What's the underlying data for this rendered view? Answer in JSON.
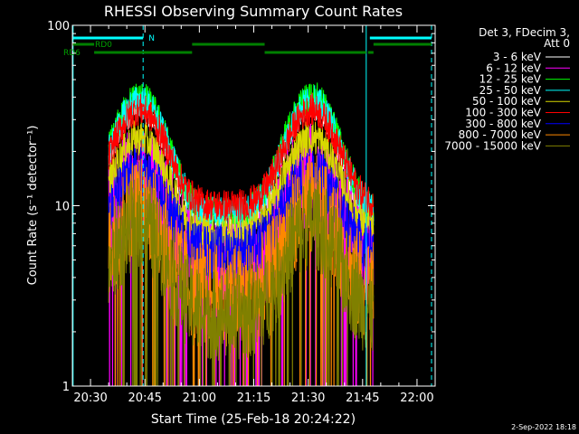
{
  "chart_data": {
    "type": "line",
    "title": "RHESSI Observing Summary Count Rates",
    "xlabel": "Start Time (25-Feb-18 20:24:22)",
    "ylabel": "Count Rate (s⁻¹ detector⁻¹)",
    "yscale": "log",
    "ylim": [
      1,
      100
    ],
    "xlim_min": [
      25,
      125
    ],
    "x_ticks": [
      {
        "min": 30,
        "label": "20:30"
      },
      {
        "min": 45,
        "label": "20:45"
      },
      {
        "min": 60,
        "label": "21:00"
      },
      {
        "min": 75,
        "label": "21:15"
      },
      {
        "min": 90,
        "label": "21:30"
      },
      {
        "min": 105,
        "label": "21:45"
      },
      {
        "min": 120,
        "label": "22:00"
      }
    ],
    "y_ticks": [
      {
        "value": 1,
        "label": "1"
      },
      {
        "value": 10,
        "label": "10"
      },
      {
        "value": 100,
        "label": "100"
      }
    ],
    "legend_header": [
      "Det 3, FDecim 3,",
      "Att 0"
    ],
    "series": [
      {
        "name": "3 - 6 keV",
        "color": "#ffffff",
        "peak": 35,
        "base": 8,
        "noise": 0.06,
        "drop": false
      },
      {
        "name": "6 - 12 keV",
        "color": "#ff00ff",
        "peak": 14,
        "base": 5,
        "noise": 0.25,
        "drop": true
      },
      {
        "name": "12 - 25 keV",
        "color": "#00ff00",
        "peak": 40,
        "base": 9,
        "noise": 0.07,
        "drop": false
      },
      {
        "name": "25 - 50 keV",
        "color": "#00ffff",
        "peak": 38,
        "base": 9,
        "noise": 0.07,
        "drop": false
      },
      {
        "name": "50 - 100 keV",
        "color": "#d8d800",
        "peak": 24,
        "base": 7,
        "noise": 0.08,
        "drop": false
      },
      {
        "name": "100 - 300 keV",
        "color": "#ff0000",
        "peak": 34,
        "base": 10,
        "noise": 0.07,
        "drop": false
      },
      {
        "name": "300 - 800 keV",
        "color": "#0000ff",
        "peak": 15,
        "base": 5.5,
        "noise": 0.12,
        "drop": false
      },
      {
        "name": "800 - 7000 keV",
        "color": "#ff8800",
        "peak": 10,
        "base": 3.2,
        "noise": 0.22,
        "drop": true
      },
      {
        "name": "7000 - 15000 keV",
        "color": "#808000",
        "peak": 8,
        "base": 2.5,
        "noise": 0.2,
        "drop": true
      }
    ],
    "data_window_min": [
      35,
      108
    ],
    "orbit_peaks_min": [
      43.5,
      91
    ],
    "markers": {
      "solid_lines_min": [
        25.2,
        106
      ],
      "dashed_lines_min": [
        44.5,
        124
      ],
      "N_label": "N",
      "RD0_label": "RD0",
      "RD6_label": "RD6",
      "N_bars_min": [
        [
          25,
          44.5
        ],
        [
          107,
          124
        ]
      ],
      "RD0_bars_min": [
        [
          25,
          31
        ],
        [
          58,
          78
        ],
        [
          108,
          124
        ]
      ],
      "RD6_bars_min": [
        [
          31,
          58
        ],
        [
          78,
          106
        ],
        [
          106.5,
          108
        ]
      ]
    }
  },
  "footer": {
    "date": "2-Sep-2022 18:18"
  }
}
